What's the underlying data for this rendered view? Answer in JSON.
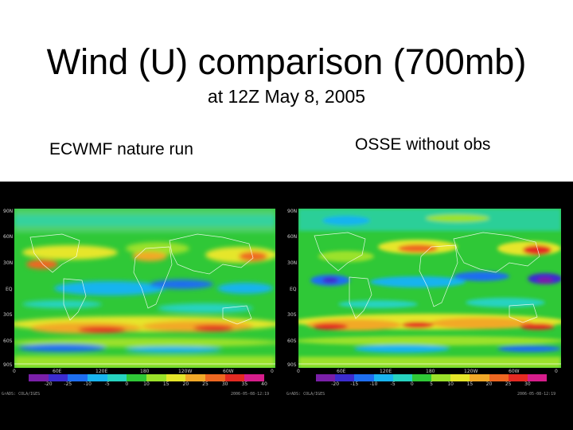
{
  "slide": {
    "title": "Wind (U) comparison (700mb)",
    "subtitle": "at 12Z May 8, 2005",
    "left_label": "ECWMF nature run",
    "right_label": "OSSE without obs"
  },
  "left_map": {
    "lat_labels": [
      "90N",
      "60N",
      "30N",
      "EQ",
      "30S",
      "60S",
      "90S"
    ],
    "lon_labels": [
      "0",
      "60E",
      "120E",
      "180",
      "120W",
      "60W",
      "0"
    ],
    "colorbar_labels": [
      "-20",
      "-25",
      "-10",
      "-5",
      "0",
      "10",
      "15",
      "20",
      "25",
      "30",
      "35",
      "40"
    ],
    "footer_left": "GrADS: COLA/IGES",
    "footer_right": "2006-05-08-12:19"
  },
  "right_map": {
    "lat_labels": [
      "90N",
      "60N",
      "30N",
      "EQ",
      "30S",
      "60S",
      "90S"
    ],
    "lon_labels": [
      "0",
      "60E",
      "120E",
      "180",
      "120W",
      "60W",
      "0"
    ],
    "colorbar_labels": [
      "-20",
      "-15",
      "-10",
      "-5",
      "0",
      "5",
      "10",
      "15",
      "20",
      "25",
      "30"
    ],
    "footer_left": "GrADS: COLA/IGES",
    "footer_right": "2006-05-08-12:19"
  },
  "colors": {
    "colorbar_left": [
      "#7a1fa8",
      "#3c2ccf",
      "#1e6ef0",
      "#19b4ef",
      "#27d3c0",
      "#2fc837",
      "#9be22a",
      "#e6e629",
      "#f2a928",
      "#ee6721",
      "#e42a22",
      "#d61d8b"
    ],
    "colorbar_right": [
      "#7a1fa8",
      "#3c2ccf",
      "#1e6ef0",
      "#19b4ef",
      "#27d3c0",
      "#2fc837",
      "#9be22a",
      "#e6e629",
      "#f2a928",
      "#ee6721",
      "#e42a22",
      "#d61d8b"
    ]
  }
}
